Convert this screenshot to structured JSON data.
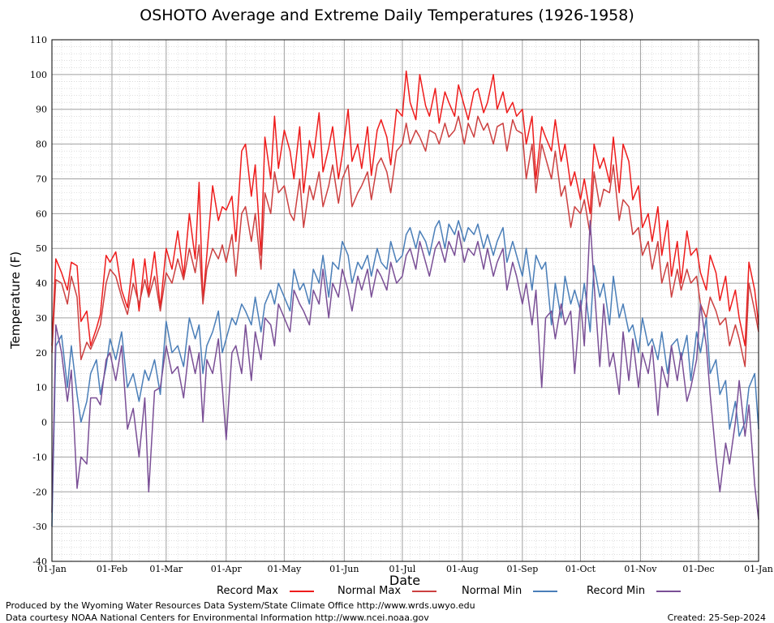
{
  "chart_data": {
    "type": "line",
    "title": "OSHOTO Average and Extreme Daily Temperatures (1926-1958)",
    "xlabel": "Date",
    "ylabel": "Temperature (F)",
    "ylim": [
      -40,
      110
    ],
    "yticks": [
      -40,
      -30,
      -20,
      -10,
      0,
      10,
      20,
      30,
      40,
      50,
      60,
      70,
      80,
      90,
      100,
      110
    ],
    "xlim": [
      0,
      365
    ],
    "xtick_positions": [
      0,
      31,
      59,
      90,
      120,
      151,
      181,
      212,
      243,
      273,
      304,
      334,
      365
    ],
    "xtick_labels": [
      "01-Jan",
      "01-Feb",
      "01-Mar",
      "01-Apr",
      "01-May",
      "01-Jun",
      "01-Jul",
      "01-Aug",
      "01-Sep",
      "01-Oct",
      "01-Nov",
      "01-Dec",
      "01-Jan"
    ],
    "grid": true,
    "legend_position": "bottom",
    "series": [
      {
        "name": "Record Max",
        "color": "#ee1c1c",
        "x": [
          0,
          2,
          5,
          8,
          10,
          13,
          15,
          18,
          20,
          23,
          25,
          28,
          30,
          33,
          36,
          39,
          42,
          45,
          48,
          50,
          53,
          56,
          59,
          62,
          65,
          68,
          71,
          74,
          76,
          78,
          80,
          83,
          86,
          88,
          90,
          93,
          95,
          98,
          100,
          103,
          105,
          108,
          110,
          113,
          115,
          117,
          120,
          123,
          125,
          128,
          130,
          133,
          135,
          138,
          140,
          143,
          145,
          148,
          150,
          153,
          155,
          158,
          160,
          163,
          165,
          168,
          170,
          173,
          175,
          178,
          181,
          183,
          185,
          188,
          190,
          193,
          195,
          198,
          200,
          203,
          205,
          208,
          210,
          213,
          215,
          218,
          220,
          223,
          225,
          228,
          230,
          233,
          235,
          238,
          240,
          243,
          245,
          248,
          250,
          253,
          255,
          258,
          260,
          263,
          265,
          268,
          270,
          273,
          275,
          278,
          280,
          283,
          285,
          288,
          290,
          293,
          295,
          298,
          300,
          303,
          305,
          308,
          310,
          313,
          315,
          318,
          320,
          323,
          325,
          328,
          330,
          333,
          335,
          338,
          340,
          343,
          345,
          348,
          350,
          353,
          355,
          358,
          360,
          363,
          365
        ],
        "y": [
          22,
          47,
          43,
          38,
          46,
          45,
          29,
          32,
          22,
          27,
          31,
          48,
          46,
          49,
          38,
          33,
          47,
          32,
          47,
          37,
          49,
          33,
          50,
          44,
          55,
          42,
          60,
          47,
          69,
          35,
          48,
          68,
          58,
          62,
          61,
          65,
          52,
          78,
          80,
          65,
          74,
          48,
          82,
          70,
          88,
          73,
          84,
          78,
          70,
          85,
          66,
          81,
          76,
          89,
          72,
          79,
          85,
          70,
          77,
          90,
          75,
          80,
          73,
          85,
          71,
          84,
          87,
          82,
          74,
          90,
          88,
          101,
          92,
          87,
          100,
          91,
          88,
          96,
          86,
          95,
          92,
          88,
          97,
          91,
          87,
          95,
          96,
          89,
          92,
          100,
          90,
          95,
          89,
          92,
          88,
          90,
          80,
          88,
          70,
          85,
          82,
          78,
          87,
          75,
          80,
          68,
          72,
          64,
          70,
          60,
          80,
          73,
          76,
          69,
          82,
          66,
          80,
          75,
          64,
          68,
          56,
          60,
          52,
          62,
          48,
          58,
          42,
          52,
          40,
          55,
          48,
          50,
          43,
          38,
          48,
          43,
          35,
          42,
          32,
          38,
          30,
          22,
          46,
          38,
          28
        ]
      },
      {
        "name": "Normal Max",
        "color": "#cc4040",
        "x": [
          0,
          2,
          5,
          8,
          10,
          13,
          15,
          18,
          20,
          23,
          25,
          28,
          30,
          33,
          36,
          39,
          42,
          45,
          48,
          50,
          53,
          56,
          59,
          62,
          65,
          68,
          71,
          74,
          76,
          78,
          80,
          83,
          86,
          88,
          90,
          93,
          95,
          98,
          100,
          103,
          105,
          108,
          110,
          113,
          115,
          117,
          120,
          123,
          125,
          128,
          130,
          133,
          135,
          138,
          140,
          143,
          145,
          148,
          150,
          153,
          155,
          158,
          160,
          163,
          165,
          168,
          170,
          173,
          175,
          178,
          181,
          183,
          185,
          188,
          190,
          193,
          195,
          198,
          200,
          203,
          205,
          208,
          210,
          213,
          215,
          218,
          220,
          223,
          225,
          228,
          230,
          233,
          235,
          238,
          240,
          243,
          245,
          248,
          250,
          253,
          255,
          258,
          260,
          263,
          265,
          268,
          270,
          273,
          275,
          278,
          280,
          283,
          285,
          288,
          290,
          293,
          295,
          298,
          300,
          303,
          305,
          308,
          310,
          313,
          315,
          318,
          320,
          323,
          325,
          328,
          330,
          333,
          335,
          338,
          340,
          343,
          345,
          348,
          350,
          353,
          355,
          358,
          360,
          363,
          365
        ],
        "y": [
          20,
          41,
          40,
          34,
          42,
          36,
          18,
          23,
          21,
          25,
          28,
          40,
          44,
          42,
          36,
          31,
          40,
          34,
          41,
          36,
          42,
          32,
          43,
          40,
          47,
          41,
          50,
          43,
          51,
          34,
          44,
          50,
          47,
          51,
          46,
          54,
          42,
          60,
          62,
          52,
          60,
          44,
          66,
          60,
          72,
          66,
          68,
          60,
          58,
          70,
          56,
          68,
          64,
          72,
          62,
          68,
          74,
          63,
          70,
          74,
          62,
          66,
          68,
          72,
          64,
          74,
          76,
          72,
          66,
          78,
          80,
          86,
          80,
          84,
          82,
          78,
          84,
          83,
          80,
          86,
          82,
          84,
          88,
          80,
          86,
          82,
          88,
          84,
          86,
          80,
          85,
          86,
          78,
          87,
          84,
          83,
          70,
          80,
          66,
          80,
          76,
          70,
          78,
          65,
          68,
          56,
          62,
          60,
          64,
          54,
          72,
          62,
          67,
          66,
          74,
          58,
          64,
          62,
          54,
          56,
          48,
          52,
          44,
          52,
          40,
          46,
          36,
          44,
          38,
          44,
          40,
          42,
          34,
          30,
          36,
          32,
          28,
          30,
          22,
          28,
          24,
          16,
          40,
          32,
          26
        ]
      },
      {
        "name": "Normal Min",
        "color": "#4a7eb8",
        "x": [
          0,
          2,
          5,
          8,
          10,
          13,
          15,
          18,
          20,
          23,
          25,
          28,
          30,
          33,
          36,
          39,
          42,
          45,
          48,
          50,
          53,
          56,
          59,
          62,
          65,
          68,
          71,
          74,
          76,
          78,
          80,
          83,
          86,
          88,
          90,
          93,
          95,
          98,
          100,
          103,
          105,
          108,
          110,
          113,
          115,
          117,
          120,
          123,
          125,
          128,
          130,
          133,
          135,
          138,
          140,
          143,
          145,
          148,
          150,
          153,
          155,
          158,
          160,
          163,
          165,
          168,
          170,
          173,
          175,
          178,
          181,
          183,
          185,
          188,
          190,
          193,
          195,
          198,
          200,
          203,
          205,
          208,
          210,
          213,
          215,
          218,
          220,
          223,
          225,
          228,
          230,
          233,
          235,
          238,
          240,
          243,
          245,
          248,
          250,
          253,
          255,
          258,
          260,
          263,
          265,
          268,
          270,
          273,
          275,
          278,
          280,
          283,
          285,
          288,
          290,
          293,
          295,
          298,
          300,
          303,
          305,
          308,
          310,
          313,
          315,
          318,
          320,
          323,
          325,
          328,
          330,
          333,
          335,
          338,
          340,
          343,
          345,
          348,
          350,
          353,
          355,
          358,
          360,
          363,
          365
        ],
        "y": [
          -30,
          22,
          25,
          10,
          22,
          8,
          0,
          6,
          14,
          18,
          8,
          16,
          24,
          18,
          26,
          10,
          14,
          6,
          15,
          12,
          18,
          8,
          29,
          20,
          22,
          16,
          30,
          24,
          28,
          14,
          22,
          26,
          32,
          20,
          24,
          30,
          28,
          34,
          32,
          28,
          36,
          26,
          34,
          38,
          34,
          40,
          36,
          32,
          44,
          38,
          40,
          34,
          44,
          40,
          48,
          36,
          46,
          44,
          52,
          48,
          40,
          46,
          44,
          48,
          42,
          50,
          46,
          44,
          52,
          46,
          48,
          54,
          56,
          50,
          55,
          52,
          48,
          56,
          58,
          50,
          57,
          54,
          58,
          52,
          56,
          54,
          57,
          50,
          54,
          48,
          52,
          56,
          46,
          52,
          48,
          42,
          50,
          38,
          48,
          44,
          46,
          28,
          40,
          30,
          42,
          34,
          38,
          32,
          40,
          26,
          45,
          36,
          40,
          28,
          42,
          30,
          34,
          26,
          28,
          20,
          30,
          22,
          24,
          18,
          26,
          14,
          22,
          24,
          18,
          25,
          12,
          26,
          20,
          30,
          14,
          18,
          8,
          12,
          -2,
          6,
          -4,
          0,
          10,
          14,
          -2
        ]
      },
      {
        "name": "Record Min",
        "color": "#7a4f96",
        "x": [
          0,
          2,
          5,
          8,
          10,
          13,
          15,
          18,
          20,
          23,
          25,
          28,
          30,
          33,
          36,
          39,
          42,
          45,
          48,
          50,
          53,
          56,
          59,
          62,
          65,
          68,
          71,
          74,
          76,
          78,
          80,
          83,
          86,
          88,
          90,
          93,
          95,
          98,
          100,
          103,
          105,
          108,
          110,
          113,
          115,
          117,
          120,
          123,
          125,
          128,
          130,
          133,
          135,
          138,
          140,
          143,
          145,
          148,
          150,
          153,
          155,
          158,
          160,
          163,
          165,
          168,
          170,
          173,
          175,
          178,
          181,
          183,
          185,
          188,
          190,
          193,
          195,
          198,
          200,
          203,
          205,
          208,
          210,
          213,
          215,
          218,
          220,
          223,
          225,
          228,
          230,
          233,
          235,
          238,
          240,
          243,
          245,
          248,
          250,
          253,
          255,
          258,
          260,
          263,
          265,
          268,
          270,
          273,
          275,
          278,
          280,
          283,
          285,
          288,
          290,
          293,
          295,
          298,
          300,
          303,
          305,
          308,
          310,
          313,
          315,
          318,
          320,
          323,
          325,
          328,
          330,
          333,
          335,
          338,
          340,
          343,
          345,
          348,
          350,
          353,
          355,
          358,
          360,
          363,
          365
        ],
        "y": [
          -26,
          28,
          20,
          6,
          15,
          -19,
          -10,
          -12,
          7,
          7,
          5,
          18,
          20,
          12,
          22,
          -2,
          4,
          -10,
          7,
          -20,
          9,
          10,
          22,
          14,
          16,
          7,
          22,
          14,
          20,
          0,
          18,
          14,
          24,
          10,
          -5,
          20,
          22,
          14,
          28,
          12,
          26,
          18,
          30,
          28,
          22,
          34,
          30,
          26,
          38,
          34,
          32,
          28,
          38,
          34,
          44,
          30,
          40,
          36,
          44,
          38,
          32,
          42,
          38,
          44,
          36,
          44,
          42,
          38,
          46,
          40,
          42,
          48,
          50,
          44,
          52,
          46,
          42,
          50,
          52,
          46,
          52,
          48,
          55,
          46,
          50,
          48,
          52,
          44,
          50,
          42,
          46,
          50,
          38,
          46,
          42,
          34,
          40,
          28,
          38,
          10,
          30,
          32,
          24,
          34,
          28,
          32,
          14,
          35,
          22,
          58,
          40,
          16,
          34,
          16,
          20,
          8,
          26,
          12,
          24,
          10,
          20,
          14,
          22,
          2,
          16,
          10,
          22,
          12,
          20,
          6,
          10,
          18,
          34,
          22,
          8,
          -10,
          -20,
          -6,
          -12,
          0,
          12,
          -4,
          5,
          -18,
          -28
        ]
      }
    ]
  },
  "footer": {
    "produced_by": "Produced by the Wyoming Water Resources Data System/State Climate Office http://www.wrds.uwyo.edu",
    "data_courtesy": "Data courtesy NOAA National Centers for Environmental Information http://www.ncei.noaa.gov",
    "created": "Created: 25-Sep-2024"
  }
}
